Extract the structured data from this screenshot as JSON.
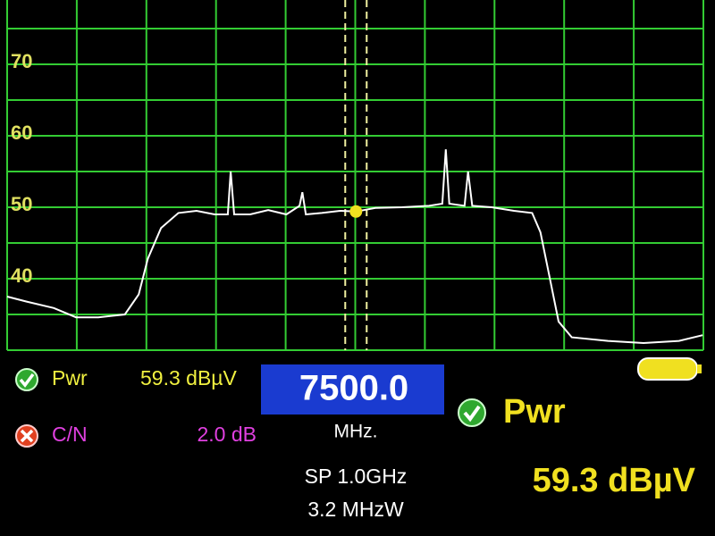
{
  "chart_data": {
    "type": "line",
    "x": [
      7000,
      7028,
      7067,
      7099,
      7131,
      7169,
      7189,
      7202,
      7221,
      7246,
      7272,
      7298,
      7317,
      7321,
      7326,
      7349,
      7375,
      7401,
      7420,
      7424,
      7429,
      7452,
      7478,
      7501,
      7529,
      7567,
      7606,
      7625,
      7630,
      7635,
      7657,
      7662,
      7668,
      7696,
      7728,
      7754,
      7766,
      7779,
      7792,
      7811,
      7863,
      7914,
      7965,
      7999
    ],
    "values": [
      37.5,
      36.8,
      35.9,
      34.6,
      34.6,
      35.0,
      37.8,
      42.8,
      47.1,
      49.2,
      49.5,
      49.0,
      49.0,
      55.0,
      49.0,
      49.0,
      49.6,
      49.0,
      50.2,
      52.1,
      49.0,
      49.2,
      49.5,
      49.4,
      49.9,
      50.0,
      50.2,
      50.5,
      58.1,
      50.5,
      50.2,
      55.0,
      50.2,
      50.0,
      49.5,
      49.2,
      46.5,
      40.3,
      34.0,
      31.8,
      31.3,
      31.0,
      31.3,
      32.1
    ],
    "color": "#ffffff",
    "xlim": [
      7000,
      8000
    ],
    "ylim": [
      30,
      80
    ],
    "yticks": [
      40,
      50,
      60,
      70,
      80
    ],
    "yminor": [
      35,
      45,
      55,
      65,
      75
    ],
    "xgrid": [
      7100,
      7200,
      7300,
      7400,
      7500,
      7600,
      7700,
      7800,
      7900
    ],
    "grid": true,
    "marker": 7501
  },
  "readouts": {
    "pwr_label": "Pwr",
    "pwr_value": "59.3 dBµV",
    "cn_label": "C/N",
    "cn_value": "2.0 dB",
    "frequency": "7500.0",
    "frequency_unit": "MHz.",
    "span": "SP 1.0GHz",
    "rbw": "3.2 MHzW",
    "big_label": "Pwr",
    "big_value": "59.3 dBµV"
  }
}
